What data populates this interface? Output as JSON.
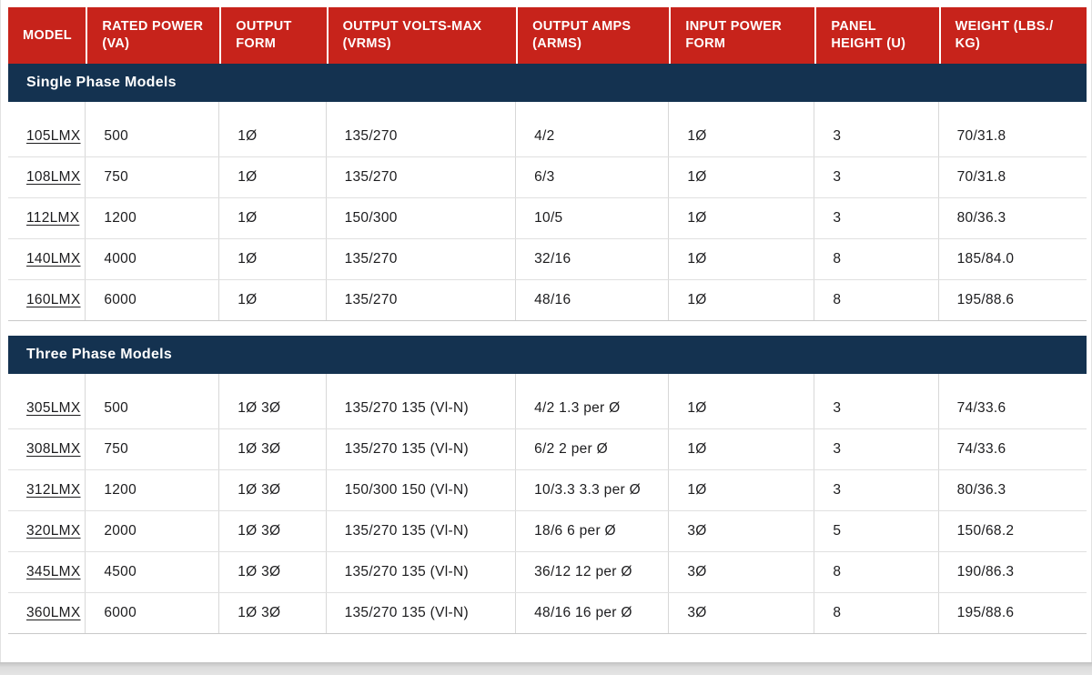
{
  "colors": {
    "header_bg": "#c7231b",
    "header_text": "#ffffff",
    "section_bg": "#143250",
    "section_text": "#ffffff",
    "body_text": "#1c1c1e",
    "grid_line": "#d8d8d8"
  },
  "table": {
    "columns": [
      "MODEL",
      "RATED POWER (VA)",
      "OUTPUT FORM",
      "OUTPUT VOLTS-MAX (VRMS)",
      "OUTPUT AMPS (ARMS)",
      "INPUT POWER FORM",
      "PANEL HEIGHT (U)",
      "WEIGHT (LBS./​KG)"
    ],
    "sections": [
      {
        "title": "Single Phase Models",
        "rows": [
          [
            "105LMX",
            "500",
            "1Ø",
            "135/270",
            "4/2",
            "1Ø",
            "3",
            "70/31.8"
          ],
          [
            "108LMX",
            "750",
            "1Ø",
            "135/270",
            "6/3",
            "1Ø",
            "3",
            "70/31.8"
          ],
          [
            "112LMX",
            "1200",
            "1Ø",
            "150/300",
            "10/5",
            "1Ø",
            "3",
            "80/36.3"
          ],
          [
            "140LMX",
            "4000",
            "1Ø",
            "135/270",
            "32/16",
            "1Ø",
            "8",
            "185/84.0"
          ],
          [
            "160LMX",
            "6000",
            "1Ø",
            "135/270",
            "48/16",
            "1Ø",
            "8",
            "195/88.6"
          ]
        ]
      },
      {
        "title": "Three Phase Models",
        "rows": [
          [
            "305LMX",
            "500",
            "1Ø 3Ø",
            "135/270 135 (Vl-N)",
            "4/2 1.3 per Ø",
            "1Ø",
            "3",
            "74/33.6"
          ],
          [
            "308LMX",
            "750",
            "1Ø 3Ø",
            "135/270 135 (Vl-N)",
            "6/2 2 per Ø",
            "1Ø",
            "3",
            "74/33.6"
          ],
          [
            "312LMX",
            "1200",
            "1Ø 3Ø",
            "150/300 150 (Vl-N)",
            "10/3.3 3.3 per Ø",
            "1Ø",
            "3",
            "80/36.3"
          ],
          [
            "320LMX",
            "2000",
            "1Ø 3Ø",
            "135/270 135 (Vl-N)",
            "18/6 6 per Ø",
            "3Ø",
            "5",
            "150/68.2"
          ],
          [
            "345LMX",
            "4500",
            "1Ø 3Ø",
            "135/270 135 (Vl-N)",
            "36/12 12 per Ø",
            "3Ø",
            "8",
            "190/86.3"
          ],
          [
            "360LMX",
            "6000",
            "1Ø 3Ø",
            "135/270 135 (Vl-N)",
            "48/16 16 per Ø",
            "3Ø",
            "8",
            "195/88.6"
          ]
        ]
      }
    ]
  }
}
